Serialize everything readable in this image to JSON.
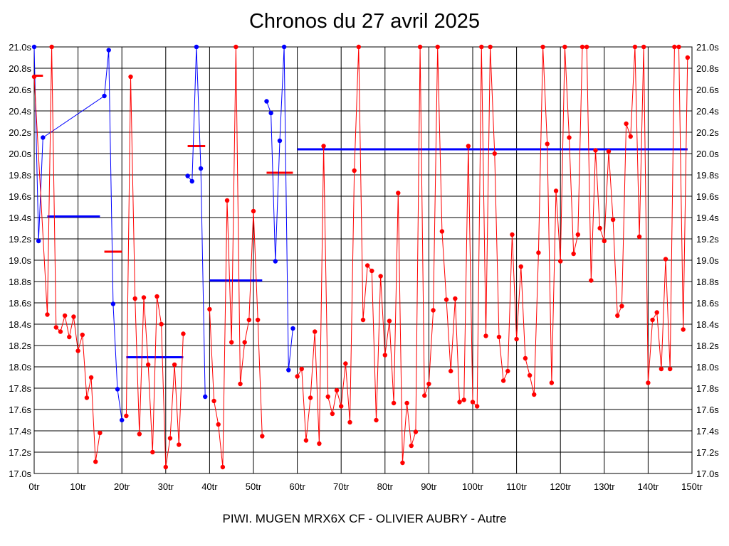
{
  "chart_data": {
    "type": "line",
    "title": "Chronos du 27 avril 2025",
    "subtitle": "PIWI. MUGEN MRX6X CF - OLIVIER AUBRY - Autre",
    "xlim": [
      0,
      150
    ],
    "ylim": [
      17.0,
      21.0
    ],
    "x_ticks": [
      "0tr",
      "10tr",
      "20tr",
      "30tr",
      "40tr",
      "50tr",
      "60tr",
      "70tr",
      "80tr",
      "90tr",
      "100tr",
      "110tr",
      "120tr",
      "130tr",
      "140tr",
      "150tr"
    ],
    "y_ticks": [
      "17.0s",
      "17.2s",
      "17.4s",
      "17.6s",
      "17.8s",
      "18.0s",
      "18.2s",
      "18.4s",
      "18.6s",
      "18.8s",
      "19.0s",
      "19.2s",
      "19.4s",
      "19.6s",
      "19.8s",
      "20.0s",
      "20.2s",
      "20.4s",
      "20.6s",
      "20.8s",
      "21.0s"
    ],
    "grid": true,
    "series": [
      {
        "color": "#0000ff",
        "points": [
          [
            0,
            21.0
          ],
          [
            1,
            19.18
          ],
          [
            2,
            20.15
          ],
          [
            16,
            20.54
          ],
          [
            17,
            20.97
          ],
          [
            18,
            18.59
          ],
          [
            19,
            17.79
          ],
          [
            20,
            17.5
          ]
        ]
      },
      {
        "color": "#0000ff",
        "points": [
          [
            35,
            19.79
          ],
          [
            36,
            19.74
          ],
          [
            37,
            21.0
          ],
          [
            38,
            19.86
          ],
          [
            39,
            17.72
          ]
        ]
      },
      {
        "color": "#0000ff",
        "points": [
          [
            53,
            20.49
          ],
          [
            54,
            20.38
          ],
          [
            55,
            18.99
          ],
          [
            56,
            20.12
          ],
          [
            57,
            21.0
          ],
          [
            58,
            17.97
          ],
          [
            59,
            18.36
          ]
        ]
      },
      {
        "color": "#ff0000",
        "points": [
          [
            0,
            20.72
          ],
          [
            3,
            18.49
          ],
          [
            4,
            21.0
          ],
          [
            5,
            18.37
          ],
          [
            6,
            18.33
          ],
          [
            7,
            18.48
          ],
          [
            8,
            18.28
          ],
          [
            9,
            18.47
          ],
          [
            10,
            18.15
          ],
          [
            11,
            18.3
          ],
          [
            12,
            17.71
          ],
          [
            13,
            17.9
          ],
          [
            14,
            17.11
          ],
          [
            15,
            17.38
          ]
        ]
      },
      {
        "color": "#ff0000",
        "points": [
          [
            21,
            17.54
          ],
          [
            22,
            20.72
          ],
          [
            23,
            18.64
          ],
          [
            24,
            17.37
          ],
          [
            25,
            18.65
          ],
          [
            26,
            18.02
          ],
          [
            27,
            17.2
          ],
          [
            28,
            18.66
          ],
          [
            29,
            18.4
          ],
          [
            30,
            17.06
          ],
          [
            31,
            17.33
          ],
          [
            32,
            18.02
          ],
          [
            33,
            17.27
          ],
          [
            34,
            18.31
          ]
        ]
      },
      {
        "color": "#ff0000",
        "points": [
          [
            40,
            18.54
          ],
          [
            41,
            17.68
          ],
          [
            42,
            17.46
          ],
          [
            43,
            17.06
          ],
          [
            44,
            19.56
          ],
          [
            45,
            18.23
          ],
          [
            46,
            21.0
          ],
          [
            47,
            17.84
          ],
          [
            48,
            18.23
          ],
          [
            49,
            18.44
          ],
          [
            50,
            19.46
          ],
          [
            51,
            18.44
          ],
          [
            52,
            17.35
          ]
        ]
      },
      {
        "color": "#ff0000",
        "points": [
          [
            60,
            17.91
          ],
          [
            61,
            17.98
          ],
          [
            62,
            17.31
          ],
          [
            63,
            17.71
          ],
          [
            64,
            18.33
          ],
          [
            65,
            17.28
          ],
          [
            66,
            20.07
          ],
          [
            67,
            17.72
          ],
          [
            68,
            17.56
          ],
          [
            69,
            17.78
          ],
          [
            70,
            17.63
          ],
          [
            71,
            18.03
          ],
          [
            72,
            17.48
          ],
          [
            73,
            19.84
          ],
          [
            74,
            21.0
          ],
          [
            75,
            18.44
          ],
          [
            76,
            18.95
          ],
          [
            77,
            18.9
          ],
          [
            78,
            17.5
          ],
          [
            79,
            18.85
          ],
          [
            80,
            18.11
          ],
          [
            81,
            18.43
          ],
          [
            82,
            17.66
          ],
          [
            83,
            19.63
          ],
          [
            84,
            17.1
          ],
          [
            85,
            17.66
          ],
          [
            86,
            17.26
          ],
          [
            87,
            17.39
          ],
          [
            88,
            21.0
          ],
          [
            89,
            17.73
          ],
          [
            90,
            17.84
          ],
          [
            91,
            18.53
          ],
          [
            92,
            21.0
          ],
          [
            93,
            19.27
          ],
          [
            94,
            18.63
          ],
          [
            95,
            17.96
          ],
          [
            96,
            18.64
          ],
          [
            97,
            17.67
          ],
          [
            98,
            17.69
          ],
          [
            99,
            20.07
          ],
          [
            100,
            17.67
          ],
          [
            101,
            17.63
          ],
          [
            102,
            21.0
          ],
          [
            103,
            18.29
          ],
          [
            104,
            21.0
          ],
          [
            105,
            20.0
          ],
          [
            106,
            18.28
          ],
          [
            107,
            17.87
          ],
          [
            108,
            17.96
          ],
          [
            109,
            19.24
          ],
          [
            110,
            18.26
          ],
          [
            111,
            18.94
          ],
          [
            112,
            18.08
          ],
          [
            113,
            17.92
          ],
          [
            114,
            17.74
          ],
          [
            115,
            19.07
          ],
          [
            116,
            21.0
          ],
          [
            117,
            20.09
          ],
          [
            118,
            17.85
          ],
          [
            119,
            19.65
          ],
          [
            120,
            18.99
          ],
          [
            121,
            21.0
          ],
          [
            122,
            20.15
          ],
          [
            123,
            19.06
          ],
          [
            124,
            19.24
          ],
          [
            125,
            21.0
          ],
          [
            126,
            21.0
          ],
          [
            127,
            18.81
          ],
          [
            128,
            20.03
          ],
          [
            129,
            19.3
          ],
          [
            130,
            19.18
          ],
          [
            131,
            20.02
          ],
          [
            132,
            19.38
          ],
          [
            133,
            18.48
          ],
          [
            134,
            18.57
          ],
          [
            135,
            20.28
          ],
          [
            136,
            20.16
          ],
          [
            137,
            21.0
          ],
          [
            138,
            19.22
          ],
          [
            139,
            21.0
          ],
          [
            140,
            17.85
          ],
          [
            141,
            18.44
          ],
          [
            142,
            18.51
          ],
          [
            143,
            17.98
          ],
          [
            144,
            19.01
          ],
          [
            145,
            17.98
          ],
          [
            146,
            21.0
          ],
          [
            147,
            21.0
          ],
          [
            148,
            18.35
          ],
          [
            149,
            20.9
          ]
        ]
      }
    ],
    "averages": [
      {
        "color": "#0000ff",
        "x": [
          3,
          15
        ],
        "y": 19.41
      },
      {
        "color": "#ff0000",
        "x": [
          0,
          2
        ],
        "y": 20.73
      },
      {
        "color": "#ff0000",
        "x": [
          16,
          20
        ],
        "y": 19.08
      },
      {
        "color": "#0000ff",
        "x": [
          21,
          34
        ],
        "y": 18.09
      },
      {
        "color": "#ff0000",
        "x": [
          35,
          39
        ],
        "y": 20.07
      },
      {
        "color": "#0000ff",
        "x": [
          40,
          52
        ],
        "y": 18.81
      },
      {
        "color": "#ff0000",
        "x": [
          53,
          59
        ],
        "y": 19.82
      },
      {
        "color": "#0000ff",
        "x": [
          60,
          149
        ],
        "y": 20.04
      }
    ]
  }
}
